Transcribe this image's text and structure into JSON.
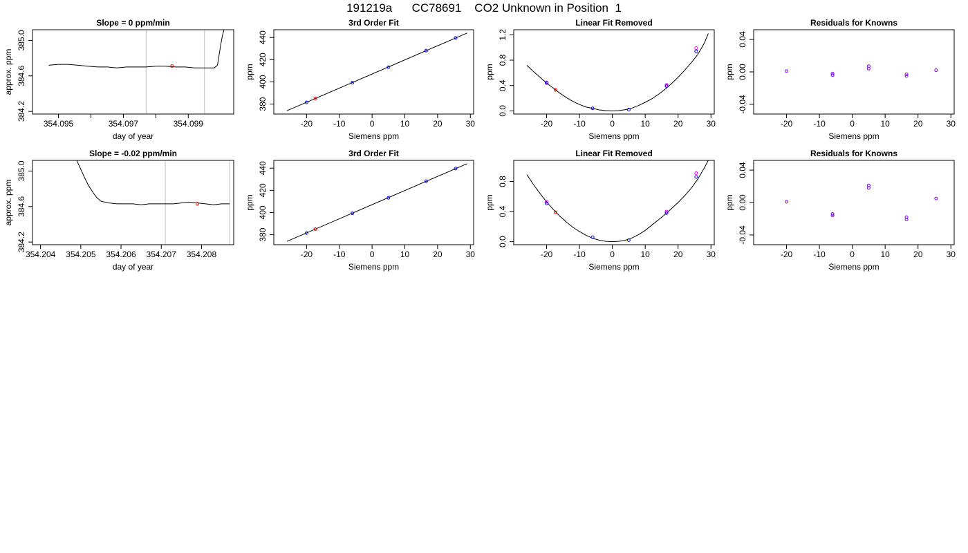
{
  "page": {
    "title": "191219a      CC78691    CO2 Unknown in Position  1"
  },
  "colors": {
    "line": "#000000",
    "frame": "#000000",
    "vline": "#bebebe",
    "known": "#0000ff",
    "unknown": "#ff0000",
    "alt": "#ff00ff",
    "residual": "#7a00ff"
  },
  "chart_data": [
    {
      "type": "line",
      "title": "Slope =  0  ppm/min",
      "xlabel": "day of year",
      "ylabel": "approx. ppm",
      "xlim": [
        354.0942,
        354.1004
      ],
      "ylim": [
        384.17,
        385.12
      ],
      "xticks": [
        354.095,
        354.096,
        354.097,
        354.098,
        354.099
      ],
      "xtick_labels": [
        "354.095",
        "",
        "354.097",
        "",
        "354.099"
      ],
      "yticks": [
        384.2,
        384.6,
        385.0
      ],
      "ytick_labels": [
        "384.2",
        "384.6",
        "385.0"
      ],
      "vlines": [
        354.0977,
        354.0995
      ],
      "series": [
        {
          "x": [
            354.0947,
            354.095,
            354.0953,
            354.0956,
            354.0959,
            354.0962,
            354.0965,
            354.0968,
            354.0971,
            354.0974,
            354.0977,
            354.098,
            354.0983,
            354.0986,
            354.0989,
            354.0992,
            354.0995,
            354.0997,
            354.0998,
            354.0999,
            354.1,
            354.10005,
            354.1001
          ],
          "y": [
            384.72,
            384.73,
            384.73,
            384.72,
            384.71,
            384.7,
            384.7,
            384.69,
            384.7,
            384.7,
            384.7,
            384.71,
            384.71,
            384.7,
            384.7,
            384.69,
            384.69,
            384.69,
            384.69,
            384.72,
            384.95,
            385.05,
            385.12
          ]
        }
      ],
      "points": [
        {
          "x": 354.0985,
          "y": 384.71
        }
      ]
    },
    {
      "type": "scatter",
      "title": "3rd Order Fit",
      "xlabel": "Siemens ppm",
      "ylabel": "ppm",
      "xlim": [
        -30,
        31
      ],
      "ylim": [
        371,
        447
      ],
      "xticks": [
        -20,
        -10,
        0,
        10,
        20,
        30
      ],
      "xtick_labels": [
        "-20",
        "-10",
        "0",
        "10",
        "20",
        "30"
      ],
      "yticks": [
        380,
        400,
        420,
        440
      ],
      "ytick_labels": [
        "380",
        "400",
        "420",
        "440"
      ],
      "series": [
        {
          "x": [
            -26,
            29
          ],
          "y": [
            374,
            444
          ]
        }
      ],
      "known": {
        "x": [
          -20,
          -6,
          5,
          16.5,
          25.5
        ],
        "y": [
          381.5,
          399.3,
          413.2,
          428.2,
          439.6
        ]
      },
      "unknown": {
        "x": [
          -17.3
        ],
        "y": [
          385
        ]
      }
    },
    {
      "type": "scatter",
      "title": "Linear Fit Removed",
      "xlabel": "Siemens ppm",
      "ylabel": "ppm",
      "xlim": [
        -30,
        31
      ],
      "ylim": [
        -0.05,
        1.28
      ],
      "xticks": [
        -20,
        -10,
        0,
        10,
        20,
        30
      ],
      "xtick_labels": [
        "-20",
        "-10",
        "0",
        "10",
        "20",
        "30"
      ],
      "yticks": [
        0.0,
        0.4,
        0.8,
        1.2
      ],
      "ytick_labels": [
        "0.0",
        "0.4",
        "0.8",
        "1.2"
      ],
      "series": [
        {
          "x": [
            -26,
            -24,
            -22,
            -20,
            -18,
            -16,
            -14,
            -12,
            -10,
            -8,
            -6,
            -4,
            -2,
            0,
            2,
            4,
            6,
            8,
            10,
            12,
            14,
            16,
            18,
            20,
            22,
            24,
            26,
            28,
            29.2
          ],
          "y": [
            0.72,
            0.62,
            0.53,
            0.44,
            0.36,
            0.28,
            0.21,
            0.15,
            0.1,
            0.06,
            0.04,
            0.015,
            0.004,
            0.0,
            0.005,
            0.02,
            0.045,
            0.085,
            0.135,
            0.19,
            0.26,
            0.34,
            0.43,
            0.53,
            0.64,
            0.76,
            0.89,
            1.07,
            1.22
          ]
        }
      ],
      "known": {
        "x": [
          -20,
          -6,
          5,
          16.5,
          25.5
        ],
        "y": [
          0.44,
          0.04,
          0.02,
          0.39,
          0.94
        ]
      },
      "alt": {
        "x": [
          -20,
          16.5,
          25.5
        ],
        "y": [
          0.45,
          0.41,
          0.99
        ]
      },
      "unknown": {
        "x": [
          -17.3
        ],
        "y": [
          0.33
        ]
      }
    },
    {
      "type": "scatter",
      "title": "Residuals for Knowns",
      "xlabel": "Siemens ppm",
      "ylabel": "ppm",
      "xlim": [
        -30,
        31
      ],
      "ylim": [
        -0.052,
        0.052
      ],
      "xticks": [
        -20,
        -10,
        0,
        10,
        20,
        30
      ],
      "xtick_labels": [
        "-20",
        "-10",
        "0",
        "10",
        "20",
        "30"
      ],
      "yticks": [
        -0.04,
        0.0,
        0.04
      ],
      "ytick_labels": [
        "-0.04",
        "0.00",
        "0.04"
      ],
      "known": {
        "x": [
          -20,
          -6,
          -6,
          5,
          5,
          16.5,
          16.5,
          25.5
        ],
        "y": [
          0.001,
          -0.002,
          -0.004,
          0.004,
          0.007,
          -0.003,
          -0.005,
          0.002
        ]
      }
    },
    {
      "type": "line",
      "title": "Slope =  -0.02  ppm/min",
      "xlabel": "day of year",
      "ylabel": "approx. ppm",
      "xlim": [
        354.2038,
        354.2088
      ],
      "ylim": [
        384.17,
        385.12
      ],
      "xticks": [
        354.204,
        354.205,
        354.206,
        354.207,
        354.208
      ],
      "xtick_labels": [
        "354.204",
        "354.205",
        "354.206",
        "354.207",
        "354.208"
      ],
      "yticks": [
        384.2,
        384.6,
        385.0
      ],
      "ytick_labels": [
        "384.2",
        "384.6",
        "385.0"
      ],
      "vlines": [
        354.2071,
        354.2087
      ],
      "series": [
        {
          "x": [
            354.2049,
            354.205,
            354.2051,
            354.2052,
            354.2053,
            354.2054,
            354.2055,
            354.2057,
            354.2059,
            354.2061,
            354.2063,
            354.2065,
            354.2067,
            354.2069,
            354.2071,
            354.2073,
            354.2075,
            354.2077,
            354.2079,
            354.2081,
            354.2083,
            354.2085,
            354.2087
          ],
          "y": [
            385.12,
            385.02,
            384.92,
            384.83,
            384.76,
            384.7,
            384.66,
            384.64,
            384.63,
            384.63,
            384.63,
            384.62,
            384.63,
            384.63,
            384.63,
            384.63,
            384.64,
            384.65,
            384.64,
            384.63,
            384.62,
            384.63,
            384.63
          ]
        }
      ],
      "points": [
        {
          "x": 354.2079,
          "y": 384.63
        }
      ]
    },
    {
      "type": "scatter",
      "title": "3rd Order Fit",
      "xlabel": "Siemens ppm",
      "ylabel": "ppm",
      "xlim": [
        -30,
        31
      ],
      "ylim": [
        371,
        447
      ],
      "xticks": [
        -20,
        -10,
        0,
        10,
        20,
        30
      ],
      "xtick_labels": [
        "-20",
        "-10",
        "0",
        "10",
        "20",
        "30"
      ],
      "yticks": [
        380,
        400,
        420,
        440
      ],
      "ytick_labels": [
        "380",
        "400",
        "420",
        "440"
      ],
      "series": [
        {
          "x": [
            -26,
            29
          ],
          "y": [
            374,
            444
          ]
        }
      ],
      "known": {
        "x": [
          -20,
          -6,
          5,
          16.5,
          25.5
        ],
        "y": [
          381.5,
          399.3,
          413.2,
          428.2,
          439.6
        ]
      },
      "unknown": {
        "x": [
          -17.3
        ],
        "y": [
          385
        ]
      }
    },
    {
      "type": "scatter",
      "title": "Linear Fit Removed",
      "xlabel": "Siemens ppm",
      "ylabel": "ppm",
      "xlim": [
        -30,
        31
      ],
      "ylim": [
        -0.04,
        1.08
      ],
      "xticks": [
        -20,
        -10,
        0,
        10,
        20,
        30
      ],
      "xtick_labels": [
        "-20",
        "-10",
        "0",
        "10",
        "20",
        "30"
      ],
      "yticks": [
        0.0,
        0.4,
        0.8
      ],
      "ytick_labels": [
        "0.0",
        "0.4",
        "0.8"
      ],
      "series": [
        {
          "x": [
            -26,
            -24,
            -22,
            -20,
            -18,
            -16,
            -14,
            -12,
            -10,
            -8,
            -6,
            -4,
            -2,
            0,
            2,
            4,
            6,
            8,
            10,
            12,
            14,
            16,
            18,
            20,
            22,
            24,
            26,
            28,
            29.2
          ],
          "y": [
            0.89,
            0.76,
            0.64,
            0.53,
            0.43,
            0.34,
            0.26,
            0.19,
            0.135,
            0.085,
            0.045,
            0.02,
            0.005,
            0.0,
            0.005,
            0.02,
            0.05,
            0.095,
            0.15,
            0.22,
            0.29,
            0.36,
            0.44,
            0.52,
            0.61,
            0.71,
            0.83,
            0.98,
            1.08
          ]
        }
      ],
      "known": {
        "x": [
          -20,
          -6,
          5,
          16.5,
          25.5
        ],
        "y": [
          0.51,
          0.06,
          0.02,
          0.38,
          0.86
        ]
      },
      "alt": {
        "x": [
          -20,
          16.5,
          25.5
        ],
        "y": [
          0.53,
          0.4,
          0.91
        ]
      },
      "unknown": {
        "x": [
          -17.3
        ],
        "y": [
          0.39
        ]
      }
    },
    {
      "type": "scatter",
      "title": "Residuals for Knowns",
      "xlabel": "Siemens ppm",
      "ylabel": "ppm",
      "xlim": [
        -30,
        31
      ],
      "ylim": [
        -0.052,
        0.052
      ],
      "xticks": [
        -20,
        -10,
        0,
        10,
        20,
        30
      ],
      "xtick_labels": [
        "-20",
        "-10",
        "0",
        "10",
        "20",
        "30"
      ],
      "yticks": [
        -0.04,
        0.0,
        0.04
      ],
      "ytick_labels": [
        "-0.04",
        "0.00",
        "0.04"
      ],
      "known": {
        "x": [
          -20,
          -6,
          -6,
          5,
          5,
          16.5,
          16.5,
          25.5
        ],
        "y": [
          0.001,
          -0.014,
          -0.016,
          0.018,
          0.021,
          -0.018,
          -0.021,
          0.005
        ]
      }
    }
  ]
}
